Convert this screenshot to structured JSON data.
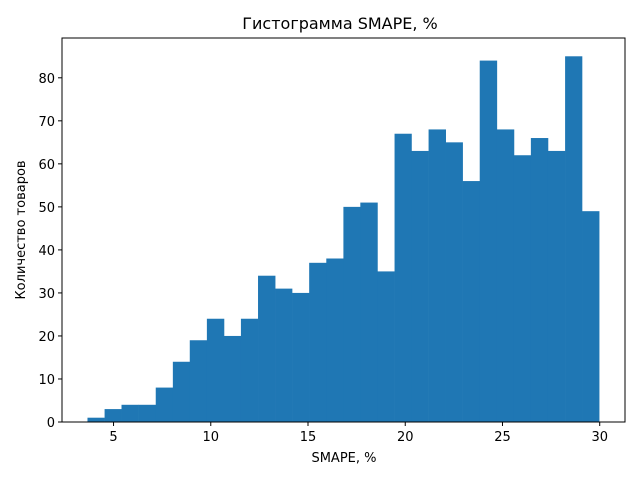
{
  "chart_data": {
    "type": "bar",
    "title": "Гистограмма SMAPE, %",
    "xlabel": "SMAPE, %",
    "ylabel": "Количество товаров",
    "xlim": [
      2.35,
      31.3
    ],
    "ylim": [
      0,
      89.25
    ],
    "x_ticks": [
      5,
      10,
      15,
      20,
      25,
      30
    ],
    "y_ticks": [
      0,
      10,
      20,
      30,
      40,
      50,
      60,
      70,
      80
    ],
    "bin_edges": [
      3.66,
      4.54,
      5.41,
      6.29,
      7.17,
      8.05,
      8.92,
      9.8,
      10.68,
      11.55,
      12.43,
      13.31,
      14.18,
      15.06,
      15.94,
      16.82,
      17.69,
      18.57,
      19.45,
      20.32,
      21.2,
      22.08,
      22.95,
      23.83,
      24.71,
      25.59,
      26.46,
      27.34,
      28.22,
      29.09,
      29.97
    ],
    "counts": [
      1,
      3,
      4,
      4,
      8,
      14,
      19,
      24,
      20,
      24,
      34,
      31,
      30,
      37,
      38,
      50,
      51,
      35,
      67,
      63,
      68,
      65,
      56,
      84,
      68,
      62,
      66,
      63,
      85,
      49
    ],
    "color": "#1f77b4",
    "grid": false,
    "legend": false
  }
}
